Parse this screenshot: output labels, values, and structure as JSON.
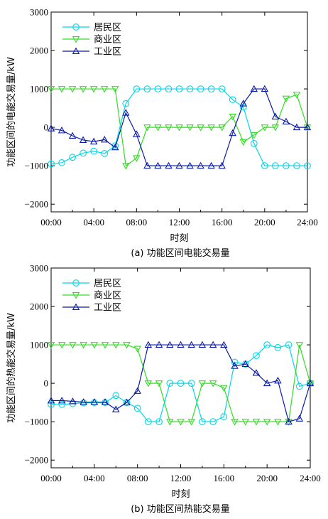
{
  "chart_data": [
    {
      "type": "line",
      "caption": "(a) 功能区间电能交易量",
      "xlabel": "时刻",
      "ylabel": "功能区间的电能交易量/kW",
      "xlim": [
        0,
        24
      ],
      "ylim": [
        -2200,
        3000
      ],
      "xticks": [
        0,
        4,
        8,
        12,
        16,
        20,
        24
      ],
      "xtick_labels": [
        "00:00",
        "04:00",
        "08:00",
        "12:00",
        "16:00",
        "20:00",
        "24:00"
      ],
      "yticks": [
        -2000,
        -1000,
        0,
        1000,
        2000,
        3000
      ],
      "ytick_labels": [
        "−2000",
        "−1000",
        "0",
        "1000",
        "2000",
        "3000"
      ],
      "legend_position": "top-left",
      "x": [
        0,
        1,
        2,
        3,
        4,
        5,
        6,
        7,
        8,
        9,
        10,
        11,
        12,
        13,
        14,
        15,
        16,
        17,
        18,
        19,
        20,
        21,
        22,
        23,
        24
      ],
      "series": [
        {
          "name": "居民区",
          "color": "#00d8e8",
          "marker": "circle",
          "values": [
            -950,
            -920,
            -780,
            -670,
            -620,
            -680,
            -480,
            620,
            1000,
            1000,
            1000,
            1000,
            1000,
            1000,
            1000,
            1000,
            1000,
            720,
            530,
            -420,
            -1000,
            -1000,
            -1000,
            -1000,
            -1000
          ]
        },
        {
          "name": "商业区",
          "color": "#33dd22",
          "marker": "triangle-down",
          "values": [
            1000,
            1000,
            1000,
            1000,
            1000,
            1000,
            1000,
            -1000,
            -800,
            0,
            0,
            0,
            0,
            0,
            0,
            0,
            0,
            280,
            -380,
            -200,
            0,
            0,
            750,
            850,
            0
          ]
        },
        {
          "name": "工业区",
          "color": "#0a1aa8",
          "marker": "triangle-up",
          "values": [
            -30,
            -80,
            -220,
            -330,
            -370,
            -320,
            -520,
            380,
            -180,
            -1000,
            -1000,
            -1000,
            -1000,
            -1000,
            -1000,
            -1000,
            -1000,
            -150,
            620,
            1000,
            1000,
            280,
            150,
            0,
            0
          ]
        }
      ]
    },
    {
      "type": "line",
      "caption": "(b) 功能区间热能交易量",
      "xlabel": "时刻",
      "ylabel": "功能区间的热能交易量/kW",
      "xlim": [
        0,
        24
      ],
      "ylim": [
        -2200,
        3000
      ],
      "xticks": [
        0,
        4,
        8,
        12,
        16,
        20,
        24
      ],
      "xtick_labels": [
        "00:00",
        "04:00",
        "08:00",
        "12:00",
        "16:00",
        "20:00",
        "24:00"
      ],
      "yticks": [
        -2000,
        -1000,
        0,
        1000,
        2000,
        3000
      ],
      "ytick_labels": [
        "−2000",
        "−1000",
        "0",
        "1000",
        "2000",
        "3000"
      ],
      "legend_position": "top-left",
      "x": [
        0,
        1,
        2,
        3,
        4,
        5,
        6,
        7,
        8,
        9,
        10,
        11,
        12,
        13,
        14,
        15,
        16,
        17,
        18,
        19,
        20,
        21,
        22,
        23,
        24
      ],
      "series": [
        {
          "name": "居民区",
          "color": "#00d8e8",
          "marker": "circle",
          "values": [
            -550,
            -550,
            -530,
            -510,
            -500,
            -500,
            -320,
            -500,
            -650,
            -1000,
            -1000,
            0,
            0,
            0,
            -1000,
            -1000,
            -870,
            550,
            500,
            720,
            1000,
            930,
            1000,
            -80,
            0
          ]
        },
        {
          "name": "商业区",
          "color": "#33dd22",
          "marker": "triangle-down",
          "values": [
            1000,
            1000,
            1000,
            1000,
            1000,
            1000,
            1000,
            1000,
            900,
            0,
            0,
            -1000,
            -1000,
            -1000,
            0,
            0,
            -120,
            -1000,
            -1000,
            -1000,
            -1000,
            -1000,
            -1000,
            1000,
            0
          ]
        },
        {
          "name": "工业区",
          "color": "#0a1aa8",
          "marker": "triangle-up",
          "values": [
            -450,
            -450,
            -470,
            -490,
            -490,
            -490,
            -680,
            -500,
            -200,
            1000,
            1000,
            1000,
            1000,
            1000,
            1000,
            1000,
            1000,
            450,
            500,
            270,
            0,
            70,
            -1000,
            -920,
            0
          ]
        }
      ]
    }
  ]
}
